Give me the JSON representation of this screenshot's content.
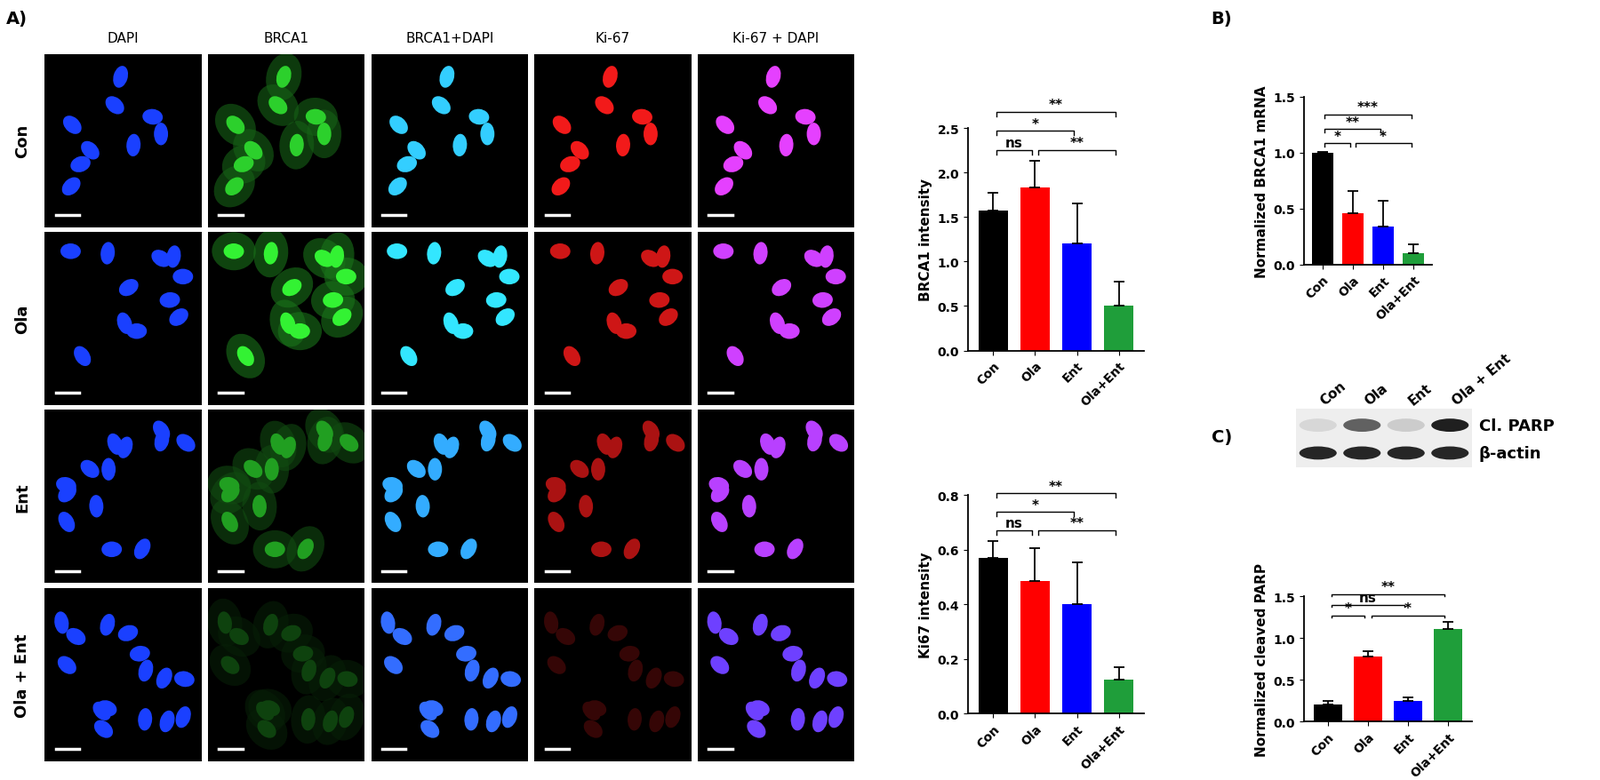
{
  "panel_labels": [
    "A)",
    "B)",
    "C)"
  ],
  "images": {
    "columns": [
      "DAPI",
      "BRCA1",
      "BRCA1+DAPI",
      "Ki-67",
      "Ki-67 + DAPI"
    ],
    "rows": [
      "Con",
      "Ola",
      "Ent",
      "Ola + Ent"
    ]
  },
  "blot": {
    "lanes": [
      "Con",
      "Ola",
      "Ent",
      "Ola + Ent"
    ],
    "bands": [
      "Cl. PARP",
      "β-actin"
    ]
  },
  "chart_data": [
    {
      "type": "bar",
      "y_label": "BRCA1 intensity",
      "categories": [
        "Con",
        "Ola",
        "Ent",
        "Ola+Ent"
      ],
      "values": [
        1.57,
        1.83,
        1.2,
        0.5
      ],
      "errors": [
        0.2,
        0.3,
        0.45,
        0.27
      ],
      "colors": [
        "#000000",
        "#ff0000",
        "#0000ff",
        "#1f9e3a"
      ],
      "ylim": [
        0.0,
        2.5
      ],
      "yticks": [
        0.0,
        0.5,
        1.0,
        1.5,
        2.0,
        2.5
      ],
      "significance": [
        {
          "pair": [
            "Con",
            "Ola"
          ],
          "label": "ns"
        },
        {
          "pair": [
            "Ola",
            "Ola+Ent"
          ],
          "label": "**"
        },
        {
          "pair": [
            "Con",
            "Ent"
          ],
          "label": "*"
        },
        {
          "pair": [
            "Con",
            "Ola+Ent"
          ],
          "label": "**"
        }
      ]
    },
    {
      "type": "bar",
      "y_label": "Ki67 intensity",
      "categories": [
        "Con",
        "Ola",
        "Ent",
        "Ola+Ent"
      ],
      "values": [
        0.57,
        0.485,
        0.4,
        0.125
      ],
      "errors": [
        0.06,
        0.12,
        0.155,
        0.045
      ],
      "colors": [
        "#000000",
        "#ff0000",
        "#0000ff",
        "#1f9e3a"
      ],
      "ylim": [
        0.0,
        0.8
      ],
      "yticks": [
        0.0,
        0.2,
        0.4,
        0.6,
        0.8
      ],
      "significance": [
        {
          "pair": [
            "Con",
            "Ola"
          ],
          "label": "ns"
        },
        {
          "pair": [
            "Ola",
            "Ola+Ent"
          ],
          "label": "**"
        },
        {
          "pair": [
            "Con",
            "Ent"
          ],
          "label": "*"
        },
        {
          "pair": [
            "Con",
            "Ola+Ent"
          ],
          "label": "**"
        }
      ]
    },
    {
      "type": "bar",
      "y_label": "Normalized BRCA1 mRNA",
      "categories": [
        "Con",
        "Ola",
        "Ent",
        "Ola+Ent"
      ],
      "values": [
        1.0,
        0.46,
        0.34,
        0.1
      ],
      "errors": [
        0.01,
        0.2,
        0.23,
        0.08
      ],
      "colors": [
        "#000000",
        "#ff0000",
        "#0000ff",
        "#1f9e3a"
      ],
      "ylim": [
        0.0,
        1.5
      ],
      "yticks": [
        0.0,
        0.5,
        1.0,
        1.5
      ],
      "significance": [
        {
          "pair": [
            "Con",
            "Ola"
          ],
          "label": "*"
        },
        {
          "pair": [
            "Ola",
            "Ola+Ent"
          ],
          "label": "*"
        },
        {
          "pair": [
            "Con",
            "Ent"
          ],
          "label": "**"
        },
        {
          "pair": [
            "Con",
            "Ola+Ent"
          ],
          "label": "***"
        }
      ]
    },
    {
      "type": "bar",
      "y_label": "Normalized cleaved PARP",
      "categories": [
        "Con",
        "Ola",
        "Ent",
        "Ola+Ent"
      ],
      "values": [
        0.2,
        0.78,
        0.25,
        1.11
      ],
      "errors": [
        0.05,
        0.06,
        0.04,
        0.09
      ],
      "colors": [
        "#000000",
        "#ff0000",
        "#0000ff",
        "#1f9e3a"
      ],
      "ylim": [
        0.0,
        1.5
      ],
      "yticks": [
        0.0,
        0.5,
        1.0,
        1.5
      ],
      "significance": [
        {
          "pair": [
            "Con",
            "Ola"
          ],
          "label": "*"
        },
        {
          "pair": [
            "Con",
            "Ent"
          ],
          "label": "ns"
        },
        {
          "pair": [
            "Ola",
            "Ola+Ent"
          ],
          "label": "*"
        },
        {
          "pair": [
            "Con",
            "Ola+Ent"
          ],
          "label": "**"
        }
      ]
    }
  ]
}
